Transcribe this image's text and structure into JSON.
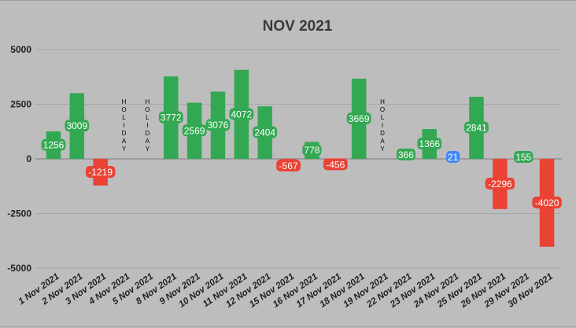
{
  "chart_data": {
    "type": "bar",
    "title": "NOV 2021",
    "xlabel": "",
    "ylabel": "",
    "ylim": [
      -5000,
      5000
    ],
    "yticks": [
      5000,
      2500,
      0,
      -2500,
      -5000
    ],
    "grid": true,
    "categories": [
      "1 Nov 2021",
      "2 Nov 2021",
      "3 Nov 2021",
      "4 Nov 2021",
      "5 Nov 2021",
      "8 Nov 2021",
      "9 Nov 2021",
      "10 Nov 2021",
      "11 Nov 2021",
      "12 Nov 2021",
      "15 Nov 2021",
      "16 Nov 2021",
      "17 Nov 2021",
      "18 Nov 2021",
      "19 Nov 2021",
      "22 Nov 2021",
      "23 Nov 2021",
      "24 Nov 2021",
      "25 Nov 2021",
      "26 Nov 2021",
      "29 Nov 2021",
      "30 Nov 2021"
    ],
    "values": [
      1256,
      3009,
      -1219,
      null,
      null,
      3772,
      2569,
      3076,
      4072,
      2404,
      -567,
      778,
      -456,
      3669,
      null,
      366,
      1366,
      21,
      2841,
      -2296,
      155,
      -4020
    ],
    "annotations": [
      "",
      "",
      "",
      "HOLIDAY",
      "HOLIDAY",
      "",
      "",
      "",
      "",
      "",
      "",
      "",
      "",
      "",
      "HOLIDAY",
      "",
      "",
      "",
      "",
      "",
      "",
      ""
    ],
    "colors": {
      "positive": "#33a852",
      "negative": "#ea4335",
      "small_label": "#4285f4"
    }
  }
}
